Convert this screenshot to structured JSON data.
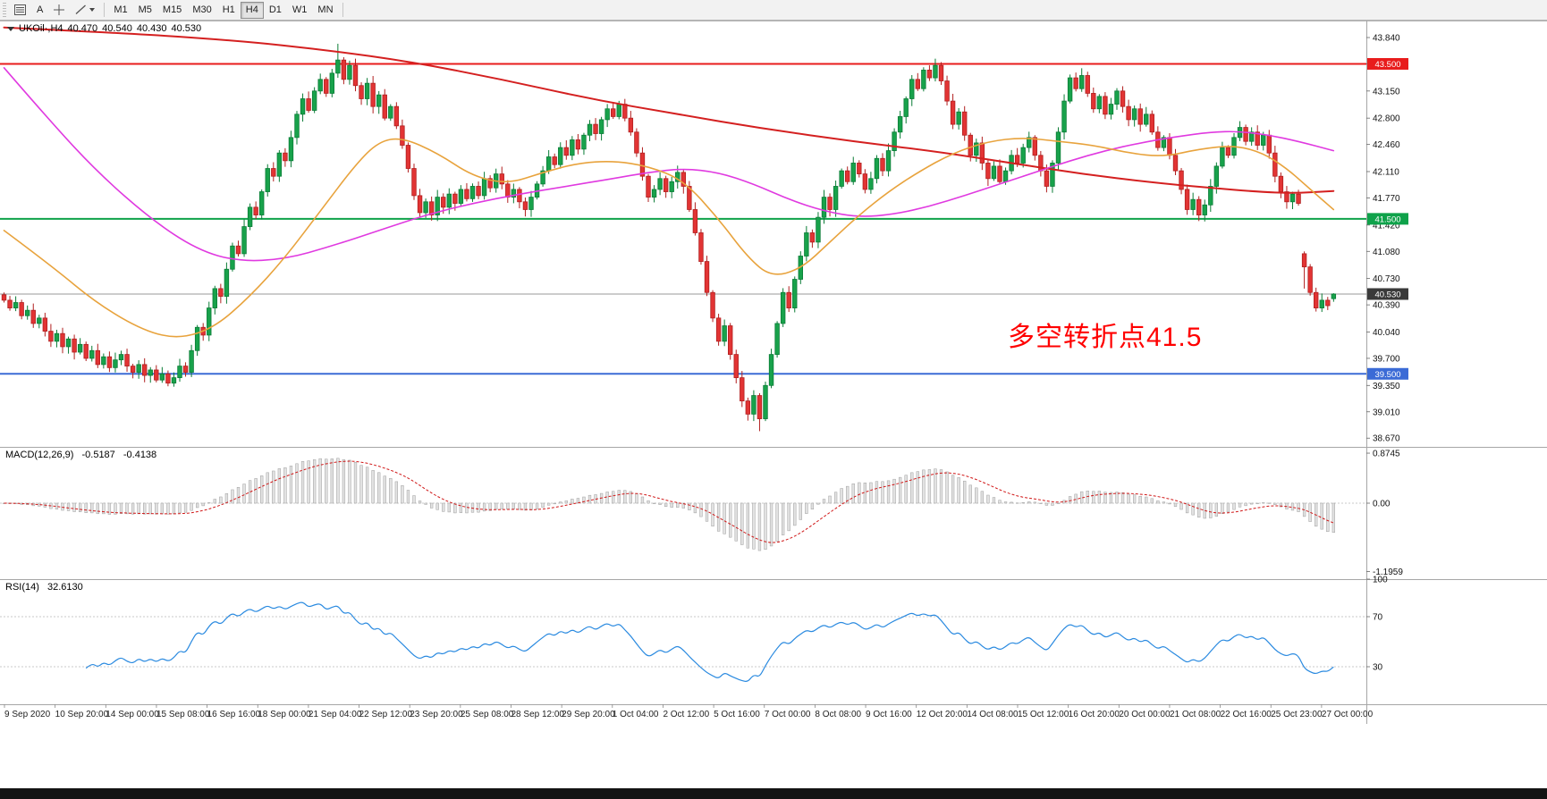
{
  "toolbar": {
    "cursor_label": "A",
    "timeframes": [
      "M1",
      "M5",
      "M15",
      "M30",
      "H1",
      "H4",
      "D1",
      "W1",
      "MN"
    ],
    "active_timeframe": "H4"
  },
  "header": {
    "symbol": "UKOil·,H4",
    "open": "40.470",
    "high": "40.540",
    "low": "40.430",
    "close": "40.530"
  },
  "annotation": {
    "text": "多空转折点41.5",
    "color": "#ff0000"
  },
  "chart_data": {
    "type": "candlestick",
    "symbol": "UKOil",
    "timeframe": "H4",
    "first_open": 40.52,
    "closes": [
      40.45,
      40.35,
      40.42,
      40.25,
      40.32,
      40.15,
      40.22,
      40.05,
      39.92,
      40.02,
      39.85,
      39.95,
      39.78,
      39.88,
      39.7,
      39.8,
      39.62,
      39.72,
      39.58,
      39.68,
      39.75,
      39.6,
      39.52,
      39.62,
      39.48,
      39.55,
      39.42,
      39.5,
      39.38,
      39.45,
      39.6,
      39.52,
      39.8,
      40.1,
      40.0,
      40.35,
      40.6,
      40.5,
      40.85,
      41.15,
      41.05,
      41.4,
      41.65,
      41.55,
      41.85,
      42.15,
      42.05,
      42.35,
      42.25,
      42.55,
      42.85,
      43.05,
      42.9,
      43.15,
      43.3,
      43.12,
      43.38,
      43.55,
      43.3,
      43.48,
      43.22,
      43.05,
      43.25,
      42.95,
      43.1,
      42.8,
      42.95,
      42.7,
      42.45,
      42.15,
      41.8,
      41.58,
      41.72,
      41.55,
      41.78,
      41.65,
      41.82,
      41.7,
      41.88,
      41.76,
      41.92,
      41.8,
      42.02,
      41.9,
      42.08,
      41.95,
      41.78,
      41.88,
      41.72,
      41.62,
      41.78,
      41.95,
      42.12,
      42.3,
      42.2,
      42.42,
      42.32,
      42.52,
      42.4,
      42.58,
      42.72,
      42.6,
      42.78,
      42.92,
      42.82,
      42.98,
      42.8,
      42.62,
      42.35,
      42.05,
      41.78,
      41.88,
      42.02,
      41.85,
      41.98,
      42.1,
      41.92,
      41.62,
      41.32,
      40.95,
      40.55,
      40.22,
      39.92,
      40.12,
      39.75,
      39.45,
      39.15,
      38.98,
      39.22,
      38.92,
      39.35,
      39.75,
      40.15,
      40.55,
      40.35,
      40.72,
      41.02,
      41.32,
      41.2,
      41.52,
      41.78,
      41.62,
      41.92,
      42.12,
      41.98,
      42.22,
      42.08,
      41.88,
      42.02,
      42.28,
      42.12,
      42.38,
      42.62,
      42.82,
      43.05,
      43.3,
      43.18,
      43.42,
      43.32,
      43.48,
      43.28,
      43.02,
      42.72,
      42.88,
      42.58,
      42.32,
      42.48,
      42.22,
      42.02,
      42.18,
      41.98,
      42.12,
      42.32,
      42.22,
      42.42,
      42.55,
      42.32,
      42.12,
      41.92,
      42.22,
      42.62,
      43.02,
      43.32,
      43.18,
      43.35,
      43.12,
      42.92,
      43.08,
      42.85,
      42.98,
      43.15,
      42.95,
      42.78,
      42.92,
      42.72,
      42.85,
      42.62,
      42.42,
      42.55,
      42.32,
      42.12,
      41.88,
      41.62,
      41.75,
      41.55,
      41.68,
      41.92,
      42.18,
      42.42,
      42.32,
      42.55,
      42.68,
      42.5,
      42.62,
      42.45,
      42.58,
      42.35,
      42.05,
      41.85,
      41.72,
      41.82,
      41.7,
      40.88,
      40.55,
      40.35,
      40.45,
      40.38,
      40.53
    ],
    "candle_overrides": {
      "57": [
        43.38,
        43.76,
        43.32,
        43.55
      ],
      "129": [
        39.22,
        39.25,
        38.76,
        38.92
      ],
      "222": [
        41.05,
        41.08,
        40.6,
        40.88
      ],
      "227": [
        40.47,
        40.54,
        40.43,
        40.53
      ]
    },
    "colors": {
      "up_fill": "#18a24b",
      "up_stroke": "#0a7c36",
      "down_fill": "#e23434",
      "down_stroke": "#b11f1f"
    },
    "price_axis_labels": [
      "43.840",
      "43.500",
      "43.150",
      "42.800",
      "42.460",
      "42.110",
      "41.770",
      "41.420",
      "41.080",
      "40.730",
      "40.390",
      "40.040",
      "39.700",
      "39.350",
      "39.010",
      "38.670"
    ],
    "levels": [
      {
        "name": "resistance-line-43500",
        "price": 43.5,
        "color": "#e81c1c",
        "badge": "43.500",
        "width": 2
      },
      {
        "name": "pivot-line-41500",
        "price": 41.5,
        "color": "#0fa24a",
        "badge": "41.500",
        "width": 2
      },
      {
        "name": "support-line-39500",
        "price": 39.5,
        "color": "#3b6bd6",
        "badge": "39.500",
        "width": 2
      }
    ],
    "current_price": {
      "value": 40.53,
      "badge": "40.530",
      "color": "#3a3a3a"
    },
    "moving_averages": [
      {
        "name": "ma-slow-red",
        "color": "#d42020",
        "width": 2,
        "points": [
          [
            0,
            43.97
          ],
          [
            20,
            43.9
          ],
          [
            40,
            43.8
          ],
          [
            55,
            43.68
          ],
          [
            70,
            43.52
          ],
          [
            85,
            43.3
          ],
          [
            100,
            43.05
          ],
          [
            115,
            42.85
          ],
          [
            130,
            42.66
          ],
          [
            145,
            42.5
          ],
          [
            160,
            42.36
          ],
          [
            172,
            42.22
          ],
          [
            184,
            42.08
          ],
          [
            196,
            41.97
          ],
          [
            206,
            41.9
          ],
          [
            214,
            41.85
          ],
          [
            220,
            41.83
          ],
          [
            227,
            41.86
          ]
        ]
      },
      {
        "name": "ma-medium-magenta",
        "color": "#e03ae0",
        "width": 1.6,
        "points": [
          [
            0,
            43.45
          ],
          [
            8,
            42.75
          ],
          [
            16,
            42.1
          ],
          [
            25,
            41.5
          ],
          [
            33,
            41.1
          ],
          [
            40,
            40.95
          ],
          [
            48,
            40.98
          ],
          [
            56,
            41.15
          ],
          [
            64,
            41.35
          ],
          [
            72,
            41.55
          ],
          [
            80,
            41.7
          ],
          [
            88,
            41.82
          ],
          [
            96,
            41.92
          ],
          [
            104,
            42.02
          ],
          [
            110,
            42.1
          ],
          [
            116,
            42.15
          ],
          [
            122,
            42.1
          ],
          [
            128,
            41.95
          ],
          [
            134,
            41.75
          ],
          [
            140,
            41.6
          ],
          [
            146,
            41.52
          ],
          [
            152,
            41.56
          ],
          [
            158,
            41.66
          ],
          [
            164,
            41.8
          ],
          [
            170,
            41.95
          ],
          [
            176,
            42.1
          ],
          [
            182,
            42.25
          ],
          [
            188,
            42.38
          ],
          [
            194,
            42.48
          ],
          [
            200,
            42.56
          ],
          [
            206,
            42.62
          ],
          [
            211,
            42.63
          ],
          [
            216,
            42.58
          ],
          [
            221,
            42.5
          ],
          [
            227,
            42.38
          ]
        ]
      },
      {
        "name": "ma-fast-orange",
        "color": "#e8a33d",
        "width": 1.6,
        "points": [
          [
            0,
            41.35
          ],
          [
            8,
            40.9
          ],
          [
            16,
            40.4
          ],
          [
            24,
            40.05
          ],
          [
            30,
            39.95
          ],
          [
            36,
            40.1
          ],
          [
            42,
            40.5
          ],
          [
            48,
            41.0
          ],
          [
            54,
            41.6
          ],
          [
            60,
            42.2
          ],
          [
            64,
            42.5
          ],
          [
            68,
            42.55
          ],
          [
            74,
            42.35
          ],
          [
            80,
            42.05
          ],
          [
            86,
            41.95
          ],
          [
            92,
            42.1
          ],
          [
            98,
            42.22
          ],
          [
            104,
            42.25
          ],
          [
            110,
            42.18
          ],
          [
            116,
            42.0
          ],
          [
            122,
            41.5
          ],
          [
            127,
            41.0
          ],
          [
            131,
            40.75
          ],
          [
            136,
            40.85
          ],
          [
            141,
            41.2
          ],
          [
            146,
            41.55
          ],
          [
            151,
            41.85
          ],
          [
            156,
            42.1
          ],
          [
            162,
            42.35
          ],
          [
            168,
            42.5
          ],
          [
            174,
            42.55
          ],
          [
            180,
            42.5
          ],
          [
            186,
            42.45
          ],
          [
            192,
            42.35
          ],
          [
            198,
            42.3
          ],
          [
            204,
            42.4
          ],
          [
            210,
            42.45
          ],
          [
            215,
            42.35
          ],
          [
            219,
            42.15
          ],
          [
            222,
            41.95
          ],
          [
            225,
            41.75
          ],
          [
            227,
            41.62
          ]
        ]
      }
    ],
    "x_labels": [
      "9 Sep 2020",
      "10 Sep 20:00",
      "14 Sep 00:00",
      "15 Sep 08:00",
      "16 Sep 16:00",
      "18 Sep 00:00",
      "21 Sep 04:00",
      "22 Sep 12:00",
      "23 Sep 20:00",
      "25 Sep 08:00",
      "28 Sep 12:00",
      "29 Sep 20:00",
      "1 Oct 04:00",
      "2 Oct 12:00",
      "5 Oct 16:00",
      "7 Oct 00:00",
      "8 Oct 08:00",
      "9 Oct 16:00",
      "12 Oct 20:00",
      "14 Oct 08:00",
      "15 Oct 12:00",
      "16 Oct 20:00",
      "20 Oct 00:00",
      "21 Oct 08:00",
      "22 Oct 16:00",
      "25 Oct 23:00",
      "27 Oct 00:00"
    ],
    "macd": {
      "label": "MACD(12,26,9)",
      "value_main": "-0.5187",
      "value_signal": "-0.4138",
      "fast": 12,
      "slow": 26,
      "signal_period": 9,
      "scale_labels": [
        "0.8745",
        "0.00",
        "-1.1959"
      ],
      "histogram_fill": "#e2e2e2",
      "histogram_stroke": "#9e9e9e",
      "signal_color": "#d01818"
    },
    "rsi": {
      "label": "RSI(14)",
      "value": "32.6130",
      "period": 14,
      "levels": [
        70,
        30
      ],
      "scale_labels": [
        "100",
        "70",
        "30"
      ],
      "line_color": "#2a8ae0"
    }
  }
}
